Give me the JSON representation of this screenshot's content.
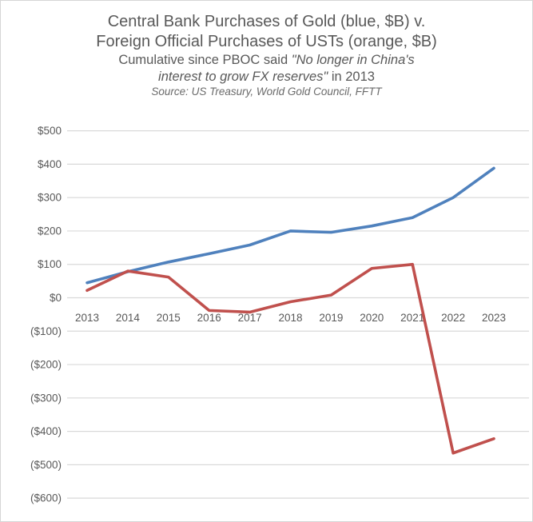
{
  "frame": {
    "background": "#ffffff",
    "border_color": "#d6d6d6"
  },
  "colors": {
    "gold_line": "#4F81BD",
    "ust_line": "#C0504D",
    "gridline": "#D9D9D9",
    "axis_text": "#595959",
    "title_text": "#595959",
    "source_text": "#6a6a6a"
  },
  "title": {
    "line1": "Central Bank Purchases of Gold (blue, $B) v.",
    "line2": "Foreign Official Purchases of USTs (orange, $B)",
    "sub_normal1": "Cumulative since PBOC said ",
    "sub_italic1": "\"No longer in China's",
    "sub_italic2": "interest to grow FX reserves\"",
    "sub_normal2": " in 2013",
    "source": "Source: US Treasury, World Gold Council, FFTT"
  },
  "chart_data": {
    "type": "line",
    "title": "Central Bank Purchases of Gold (blue, $B) v. Foreign Official Purchases of USTs (orange, $B)",
    "subtitle": "Cumulative since PBOC said \"No longer in China's interest to grow FX reserves\" in 2013",
    "source": "Source: US Treasury, World Gold Council, FFTT",
    "categories": [
      "2013",
      "2014",
      "2015",
      "2016",
      "2017",
      "2018",
      "2019",
      "2020",
      "2021",
      "2022",
      "2023"
    ],
    "series": [
      {
        "name": "Central Bank Purchases of Gold",
        "color": "#4F81BD",
        "values": [
          45,
          78,
          107,
          132,
          158,
          200,
          196,
          215,
          240,
          300,
          388
        ]
      },
      {
        "name": "Foreign Official Purchases of USTs",
        "color": "#C0504D",
        "values": [
          22,
          80,
          62,
          -38,
          -43,
          -12,
          8,
          88,
          100,
          -465,
          -422
        ]
      }
    ],
    "ylim": [
      -600,
      500
    ],
    "ytick_step": 100,
    "ytick_labels": [
      "$500",
      "$400",
      "$300",
      "$200",
      "$100",
      "$0",
      "($100)",
      "($200)",
      "($300)",
      "($400)",
      "($500)",
      "($600)"
    ],
    "xlabel": "",
    "ylabel": "",
    "grid": "horizontal",
    "legend_position": "none"
  }
}
